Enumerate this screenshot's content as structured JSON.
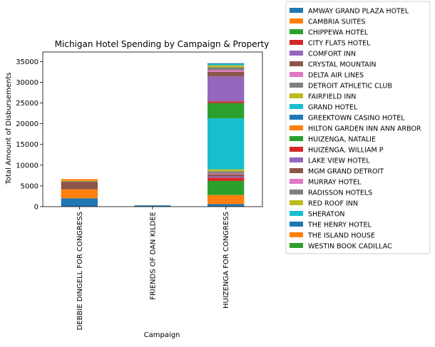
{
  "chart_data": {
    "type": "bar",
    "stacked": true,
    "title": "Michigan Hotel Spending by Campaign & Property",
    "xlabel": "Campaign",
    "ylabel": "Total Amount of Disbursements",
    "ylim": [
      0,
      37300
    ],
    "yticks": [
      0,
      5000,
      10000,
      15000,
      20000,
      25000,
      30000,
      35000
    ],
    "grid": false,
    "legend_position": "outside-top-right",
    "categories": [
      "DEBBIE DINGELL FOR CONGRESS",
      "FRIENDS OF DAN KILDEE",
      "HUIZENGA FOR CONGRESS"
    ],
    "series": [
      {
        "name": "AMWAY GRAND PLAZA HOTEL",
        "color": "#1f77b4",
        "values": [
          0,
          0,
          600
        ]
      },
      {
        "name": "CAMBRIA SUITES",
        "color": "#ff7f0e",
        "values": [
          0,
          0,
          2200
        ]
      },
      {
        "name": "CHIPPEWA HOTEL",
        "color": "#2ca02c",
        "values": [
          0,
          0,
          3400
        ]
      },
      {
        "name": "CITY FLATS HOTEL",
        "color": "#d62728",
        "values": [
          0,
          0,
          800
        ]
      },
      {
        "name": "COMFORT INN",
        "color": "#9467bd",
        "values": [
          0,
          0,
          300
        ]
      },
      {
        "name": "CRYSTAL MOUNTAIN",
        "color": "#8c564b",
        "values": [
          0,
          0,
          500
        ]
      },
      {
        "name": "DELTA AIR LINES",
        "color": "#e377c2",
        "values": [
          0,
          0,
          200
        ]
      },
      {
        "name": "DETROIT ATHLETIC CLUB",
        "color": "#7f7f7f",
        "values": [
          0,
          0,
          500
        ]
      },
      {
        "name": "FAIRFIELD INN",
        "color": "#bcbd22",
        "values": [
          0,
          0,
          500
        ]
      },
      {
        "name": "GRAND HOTEL",
        "color": "#17becf",
        "values": [
          0,
          0,
          12300
        ]
      },
      {
        "name": "GREEKTOWN CASINO HOTEL",
        "color": "#1f77b4",
        "values": [
          2000,
          300,
          0
        ]
      },
      {
        "name": "HILTON GARDEN INN ANN ARBOR",
        "color": "#ff7f0e",
        "values": [
          2200,
          0,
          0
        ]
      },
      {
        "name": "HUIZENGA, NATALIE",
        "color": "#2ca02c",
        "values": [
          0,
          0,
          3700
        ]
      },
      {
        "name": "HUIZENGA, WILLIAM P",
        "color": "#d62728",
        "values": [
          0,
          0,
          400
        ]
      },
      {
        "name": "LAKE VIEW HOTEL",
        "color": "#9467bd",
        "values": [
          0,
          0,
          6000
        ]
      },
      {
        "name": "MGM GRAND DETROIT",
        "color": "#8c564b",
        "values": [
          1800,
          0,
          1100
        ]
      },
      {
        "name": "MURRAY HOTEL",
        "color": "#e377c2",
        "values": [
          0,
          0,
          400
        ]
      },
      {
        "name": "RADISSON HOTELS",
        "color": "#7f7f7f",
        "values": [
          100,
          0,
          700
        ]
      },
      {
        "name": "RED ROOF INN",
        "color": "#bcbd22",
        "values": [
          150,
          0,
          500
        ]
      },
      {
        "name": "SHERATON",
        "color": "#17becf",
        "values": [
          0,
          0,
          300
        ]
      },
      {
        "name": "THE HENRY HOTEL",
        "color": "#1f77b4",
        "values": [
          0,
          0,
          200
        ]
      },
      {
        "name": "THE ISLAND HOUSE",
        "color": "#ff7f0e",
        "values": [
          400,
          0,
          0
        ]
      },
      {
        "name": "WESTIN BOOK CADILLAC",
        "color": "#2ca02c",
        "values": [
          0,
          0,
          0
        ]
      }
    ]
  }
}
